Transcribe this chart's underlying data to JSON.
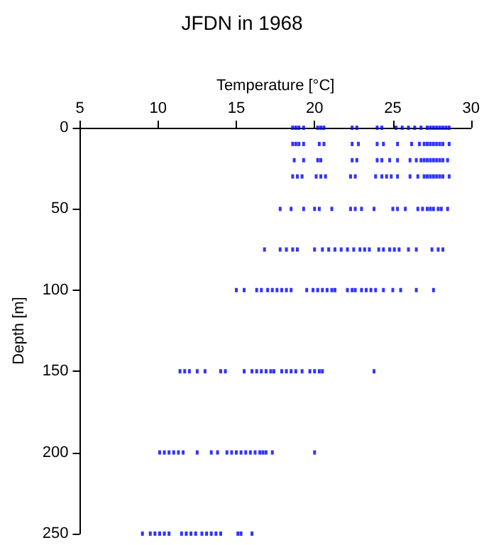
{
  "chart_data": {
    "type": "scatter",
    "title": "JFDN in 1968",
    "xlabel": "Temperature [°C]",
    "ylabel": "Depth [m]",
    "xlim": [
      5,
      30
    ],
    "xticks": [
      5,
      10,
      15,
      20,
      25,
      30
    ],
    "ylim": [
      250,
      0
    ],
    "yticks": [
      0,
      50,
      100,
      150,
      200,
      250
    ],
    "grid": false,
    "legend": false,
    "marker": "square",
    "series": [
      {
        "color": "#0000ff",
        "x": [
          18.6,
          18.8,
          19.0,
          19.3,
          20.2,
          20.4,
          20.6,
          22.4,
          22.7,
          24.0,
          24.3,
          25.2,
          25.6,
          26.0,
          26.4,
          26.8,
          27.2,
          27.4,
          27.6,
          27.8,
          28.0,
          28.2,
          28.4,
          28.6
        ],
        "values": [
          0,
          0,
          0,
          0,
          0,
          0,
          0,
          0,
          0,
          0,
          0,
          0,
          0,
          0,
          0,
          0,
          0,
          0,
          0,
          0,
          0,
          0,
          0,
          0
        ]
      },
      {
        "color": "#0000ff",
        "x": [
          18.6,
          18.8,
          19.0,
          19.3,
          20.3,
          20.6,
          22.4,
          22.8,
          24.0,
          24.4,
          25.3,
          26.2,
          26.7,
          27.0,
          27.2,
          27.4,
          27.6,
          27.8,
          28.0,
          28.2,
          28.6
        ],
        "values": [
          10,
          10,
          10,
          10,
          10,
          10,
          10,
          10,
          10,
          10,
          10,
          10,
          10,
          10,
          10,
          10,
          10,
          10,
          10,
          10,
          10
        ]
      },
      {
        "color": "#0000ff",
        "x": [
          18.7,
          19.3,
          20.2,
          20.4,
          22.4,
          22.7,
          24.0,
          24.3,
          24.8,
          25.3,
          26.1,
          26.5,
          26.8,
          27.0,
          27.2,
          27.4,
          27.6,
          27.8,
          28.0,
          28.2,
          28.5
        ],
        "values": [
          20,
          20,
          20,
          20,
          20,
          20,
          20,
          20,
          20,
          20,
          20,
          20,
          20,
          20,
          20,
          20,
          20,
          20,
          20,
          20,
          20
        ]
      },
      {
        "color": "#0000ff",
        "x": [
          18.6,
          18.9,
          19.2,
          20.1,
          20.4,
          20.7,
          22.3,
          22.6,
          23.9,
          24.3,
          24.6,
          24.9,
          25.3,
          26.1,
          26.6,
          27.0,
          27.2,
          27.4,
          27.6,
          27.8,
          28.0,
          28.2,
          28.6
        ],
        "values": [
          30,
          30,
          30,
          30,
          30,
          30,
          30,
          30,
          30,
          30,
          30,
          30,
          30,
          30,
          30,
          30,
          30,
          30,
          30,
          30,
          30,
          30,
          30
        ]
      },
      {
        "color": "#0000ff",
        "x": [
          17.8,
          18.5,
          19.3,
          20.0,
          20.3,
          21.1,
          22.3,
          22.6,
          23.0,
          23.8,
          25.0,
          25.3,
          25.8,
          26.6,
          26.9,
          27.2,
          27.4,
          27.6,
          27.9,
          28.1,
          28.5
        ],
        "values": [
          50,
          50,
          50,
          50,
          50,
          50,
          50,
          50,
          50,
          50,
          50,
          50,
          50,
          50,
          50,
          50,
          50,
          50,
          50,
          50,
          50
        ]
      },
      {
        "color": "#0000ff",
        "x": [
          16.8,
          17.8,
          18.2,
          18.6,
          18.9,
          20.0,
          20.5,
          20.9,
          21.3,
          21.7,
          22.1,
          22.5,
          22.9,
          23.2,
          23.5,
          24.1,
          24.4,
          24.8,
          25.1,
          25.4,
          26.0,
          26.5,
          27.5,
          27.9,
          28.2
        ],
        "values": [
          75,
          75,
          75,
          75,
          75,
          75,
          75,
          75,
          75,
          75,
          75,
          75,
          75,
          75,
          75,
          75,
          75,
          75,
          75,
          75,
          75,
          75,
          75,
          75,
          75
        ]
      },
      {
        "color": "#0000ff",
        "x": [
          15.0,
          15.5,
          16.3,
          16.6,
          17.0,
          17.3,
          17.6,
          17.9,
          18.2,
          18.5,
          19.5,
          19.9,
          20.2,
          20.5,
          20.8,
          21.1,
          21.3,
          22.1,
          22.4,
          22.6,
          23.0,
          23.3,
          23.6,
          23.9,
          24.4,
          25.0,
          25.5,
          26.5,
          27.6
        ],
        "values": [
          100,
          100,
          100,
          100,
          100,
          100,
          100,
          100,
          100,
          100,
          100,
          100,
          100,
          100,
          100,
          100,
          100,
          100,
          100,
          100,
          100,
          100,
          100,
          100,
          100,
          100,
          100,
          100,
          100
        ]
      },
      {
        "color": "#0000ff",
        "x": [
          11.4,
          11.7,
          12.0,
          12.5,
          13.0,
          14.0,
          14.3,
          15.5,
          16.0,
          16.3,
          16.6,
          16.9,
          17.2,
          17.4,
          17.9,
          18.2,
          18.5,
          18.8,
          19.2,
          19.7,
          20.0,
          20.3,
          20.5,
          23.8
        ],
        "values": [
          150,
          150,
          150,
          150,
          150,
          150,
          150,
          150,
          150,
          150,
          150,
          150,
          150,
          150,
          150,
          150,
          150,
          150,
          150,
          150,
          150,
          150,
          150,
          150
        ]
      },
      {
        "color": "#0000ff",
        "x": [
          10.1,
          10.4,
          10.7,
          11.0,
          11.3,
          11.6,
          12.5,
          13.4,
          13.8,
          14.4,
          14.7,
          15.0,
          15.3,
          15.6,
          15.9,
          16.2,
          16.5,
          16.7,
          16.9,
          17.3,
          20.0
        ],
        "values": [
          200,
          200,
          200,
          200,
          200,
          200,
          200,
          200,
          200,
          200,
          200,
          200,
          200,
          200,
          200,
          200,
          200,
          200,
          200,
          200,
          200
        ]
      },
      {
        "color": "#0000ff",
        "x": [
          9.0,
          9.5,
          9.8,
          10.1,
          10.4,
          10.7,
          11.5,
          11.8,
          12.1,
          12.4,
          12.8,
          13.1,
          13.4,
          13.7,
          14.0,
          15.1,
          15.3,
          16.0
        ],
        "values": [
          250,
          250,
          250,
          250,
          250,
          250,
          250,
          250,
          250,
          250,
          250,
          250,
          250,
          250,
          250,
          250,
          250,
          250
        ]
      }
    ]
  }
}
